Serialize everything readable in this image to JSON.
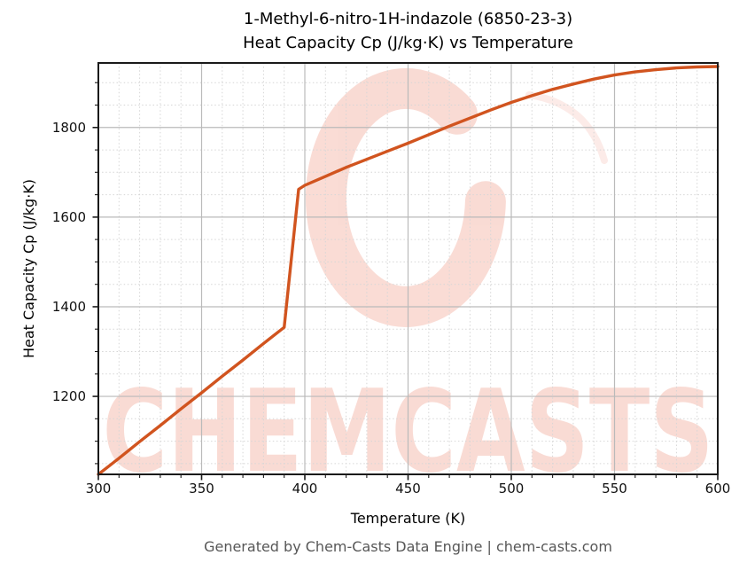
{
  "figure": {
    "title_line1": "1-Methyl-6-nitro-1H-indazole (6850-23-3)",
    "title_line2": "Heat Capacity Cp (J/kg·K) vs Temperature",
    "footer": "Generated by Chem-Casts Data Engine | chem-casts.com",
    "watermark_text": "CHEMCASTS"
  },
  "chart_data": {
    "type": "line",
    "title": "1-Methyl-6-nitro-1H-indazole (6850-23-3) — Heat Capacity Cp (J/kg·K) vs Temperature",
    "xlabel": "Temperature (K)",
    "ylabel": "Heat Capacity Cp (J/kg·K)",
    "xlim": [
      300,
      600
    ],
    "ylim": [
      1026,
      1944
    ],
    "x_ticks": [
      300,
      350,
      400,
      450,
      500,
      550,
      600
    ],
    "y_ticks": [
      1200,
      1400,
      1600,
      1800
    ],
    "x_minor_step": 10,
    "y_minor_step": 50,
    "grid": "both",
    "legend": "none",
    "line_color": "#d1541f",
    "watermark_color": "#e85f41",
    "major_grid_color": "#bababa",
    "minor_grid_color": "#d6d6d6",
    "series": [
      {
        "name": "Heat Capacity Cp (J/kg·K)",
        "points": [
          [
            300,
            1026
          ],
          [
            310,
            1062
          ],
          [
            320,
            1099
          ],
          [
            330,
            1135
          ],
          [
            340,
            1172
          ],
          [
            350,
            1208
          ],
          [
            360,
            1245
          ],
          [
            370,
            1281
          ],
          [
            380,
            1318
          ],
          [
            390,
            1354
          ],
          [
            397,
            1662
          ],
          [
            400,
            1671
          ],
          [
            410,
            1691
          ],
          [
            420,
            1711
          ],
          [
            430,
            1729
          ],
          [
            440,
            1747
          ],
          [
            450,
            1765
          ],
          [
            460,
            1784
          ],
          [
            470,
            1803
          ],
          [
            480,
            1821
          ],
          [
            490,
            1839
          ],
          [
            500,
            1856
          ],
          [
            510,
            1871
          ],
          [
            520,
            1885
          ],
          [
            530,
            1897
          ],
          [
            540,
            1908
          ],
          [
            550,
            1917
          ],
          [
            560,
            1924
          ],
          [
            570,
            1929
          ],
          [
            580,
            1933
          ],
          [
            590,
            1935
          ],
          [
            600,
            1936
          ]
        ]
      }
    ],
    "annotations": {
      "phase_transition_jump": {
        "from": [
          390,
          1354
        ],
        "to": [
          397,
          1662
        ]
      }
    }
  }
}
